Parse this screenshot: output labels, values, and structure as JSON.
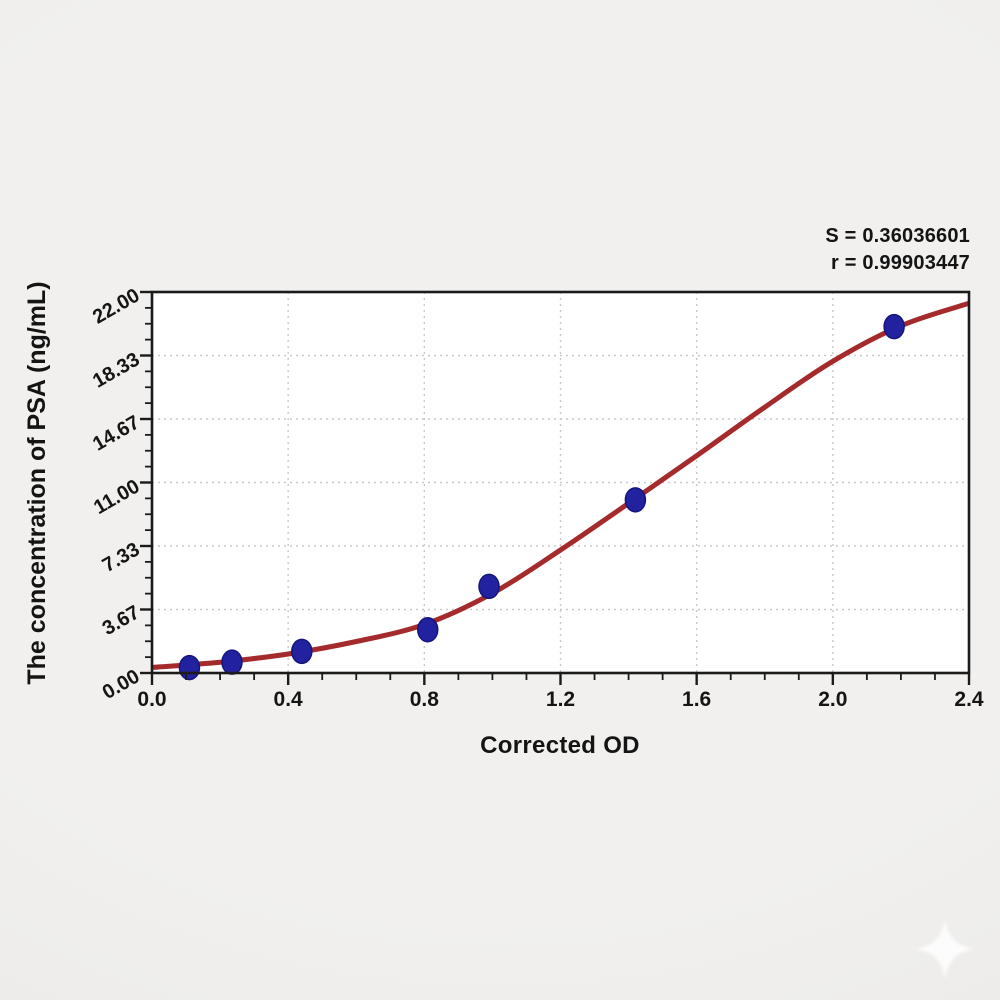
{
  "figure": {
    "background_color": "#f0efed",
    "plot_background": "#ffffff"
  },
  "chart_data": {
    "type": "scatter",
    "title": "",
    "xlabel": "Corrected OD",
    "ylabel": "The concentration of PSA (ng/mL)",
    "xlim": [
      0,
      2.4
    ],
    "ylim": [
      0,
      22
    ],
    "grid": true,
    "legend": "none",
    "x_major_ticks": [
      0.0,
      0.4,
      0.8,
      1.2,
      1.6,
      2.0,
      2.4
    ],
    "x_tick_labels": [
      "0.0",
      "0.4",
      "0.8",
      "1.2",
      "1.6",
      "2.0",
      "2.4"
    ],
    "x_minor_tick_step": 0.1,
    "y_major_ticks": [
      0,
      3.6667,
      7.3333,
      11,
      14.6667,
      18.3333,
      22
    ],
    "y_tick_labels": [
      "0.00",
      "3.67",
      "7.33",
      "11.00",
      "14.67",
      "18.33",
      "22.00"
    ],
    "y_minor_ticks_per_major": 3,
    "annotations": [
      "S = 0.36036601",
      "r = 0.99903447"
    ],
    "fit_stats": {
      "S": 0.36036601,
      "r": 0.99903447
    },
    "series": [
      {
        "name": "standard-points",
        "type": "scatter",
        "marker": "ellipse",
        "color": "#2222a0",
        "edge_color": "#15157d",
        "points": [
          [
            0.11,
            0.3125
          ],
          [
            0.235,
            0.625
          ],
          [
            0.44,
            1.25
          ],
          [
            0.81,
            2.5
          ],
          [
            0.99,
            5.0
          ],
          [
            1.42,
            10.0
          ],
          [
            2.18,
            20.0
          ]
        ]
      },
      {
        "name": "fit-curve",
        "type": "line",
        "color": "#a42a2b",
        "points": [
          [
            0.0,
            0.32
          ],
          [
            0.2,
            0.62
          ],
          [
            0.4,
            1.1
          ],
          [
            0.6,
            1.82
          ],
          [
            0.8,
            2.8
          ],
          [
            1.0,
            4.6
          ],
          [
            1.2,
            7.1
          ],
          [
            1.4,
            9.8
          ],
          [
            1.6,
            12.55
          ],
          [
            1.8,
            15.35
          ],
          [
            2.0,
            18.0
          ],
          [
            2.2,
            20.05
          ],
          [
            2.4,
            21.35
          ]
        ]
      }
    ],
    "colors": {
      "axis": "#1b1b1b",
      "grid": "#c9c9c9",
      "tick_label": "#151515",
      "curve": "#a42a2b",
      "marker": "#2222a0"
    }
  },
  "watermark": {
    "icon": "sparkle-star",
    "color": "#ffffff"
  }
}
